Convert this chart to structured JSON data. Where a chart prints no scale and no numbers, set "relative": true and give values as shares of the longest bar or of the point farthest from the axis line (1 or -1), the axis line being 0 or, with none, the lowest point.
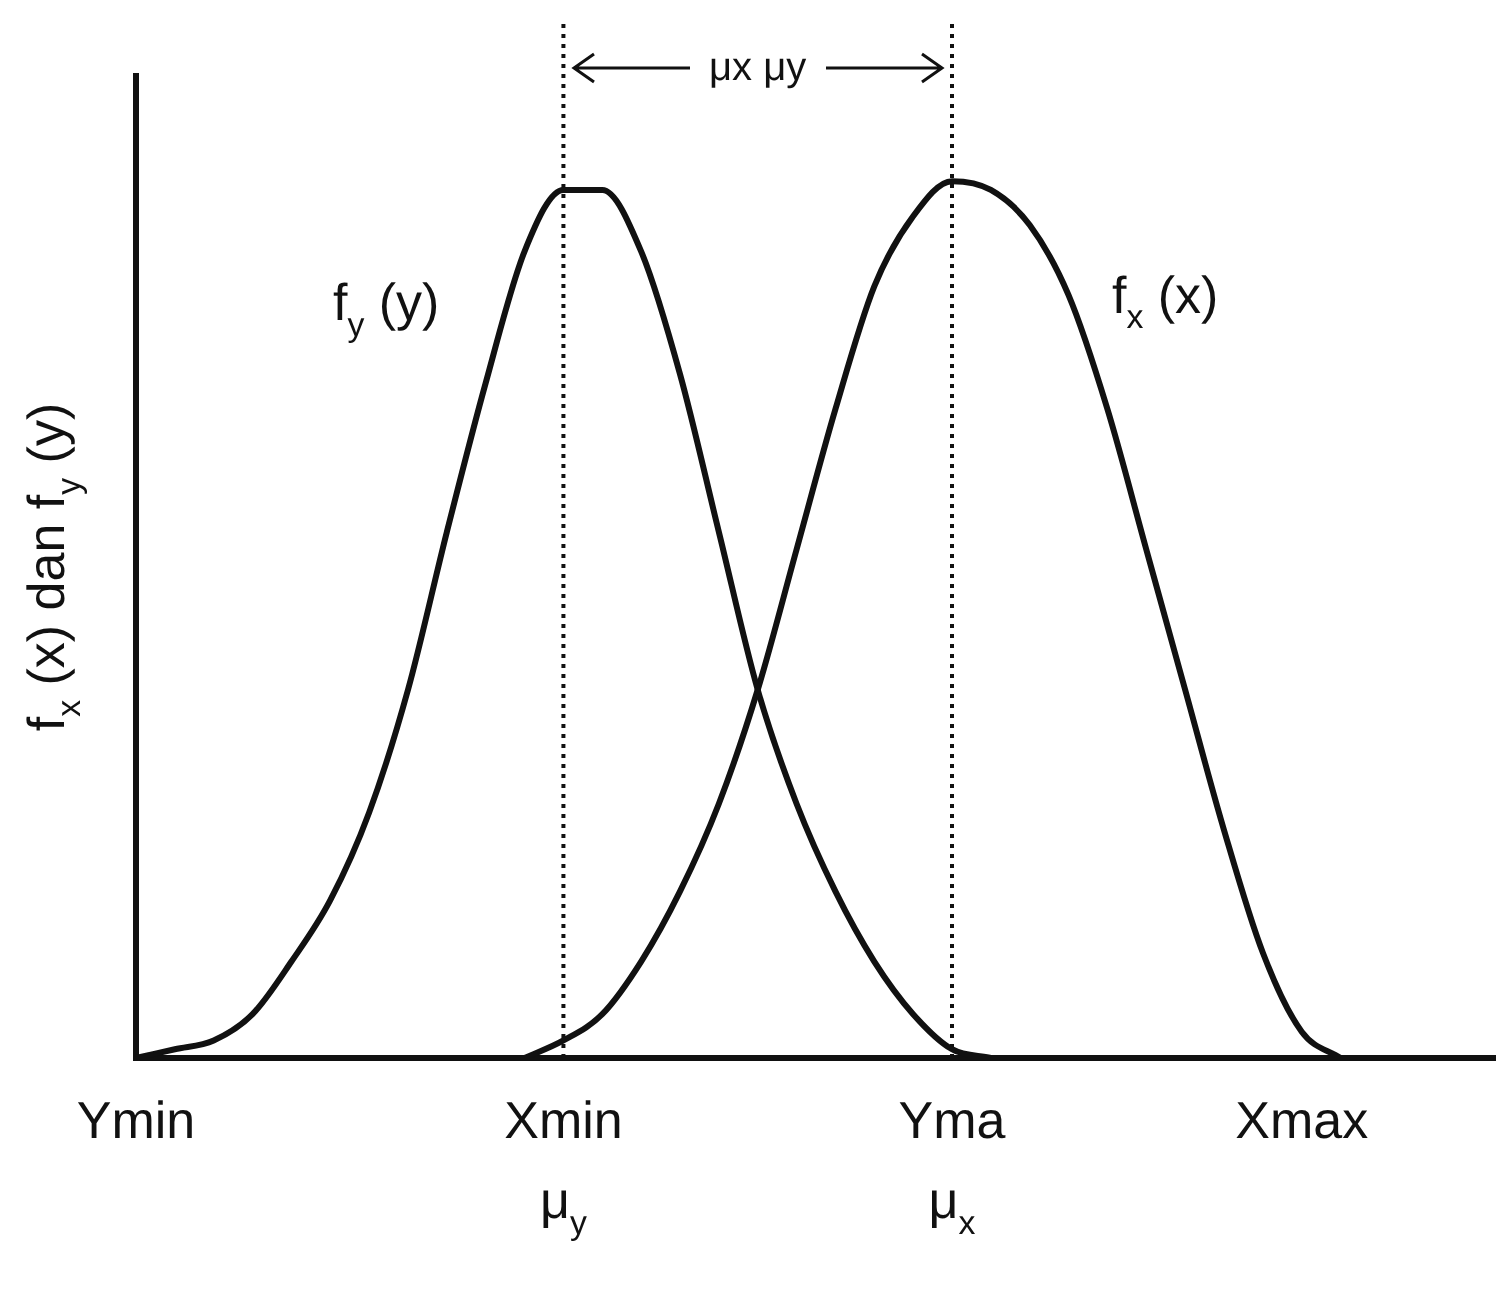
{
  "chart_data": {
    "type": "line",
    "relative": true,
    "ylabel": "f$_{x}$ (x) dan f$_{y}$ (y)",
    "categories": [
      "Ymin",
      null,
      null,
      null,
      null,
      null,
      null,
      null,
      null,
      null,
      null,
      "Xmin\nμ$_{y}$",
      null,
      null,
      null,
      null,
      null,
      null,
      null,
      null,
      null,
      "Yma\nμ$_{x}$",
      null,
      null,
      null,
      null,
      null,
      null,
      null,
      null,
      "Xmax",
      null,
      null,
      null,
      null,
      null
    ],
    "series": [
      {
        "name": "f$_{y}$ (y)",
        "color": "#111111",
        "values": [
          0,
          0.01,
          0.02,
          0.05,
          0.11,
          0.18,
          0.28,
          0.42,
          0.6,
          0.77,
          0.92,
          0.99,
          0.99,
          0.92,
          0.78,
          0.6,
          0.42,
          0.29,
          0.19,
          0.11,
          0.05,
          0.01,
          0,
          null,
          null,
          null,
          null,
          null,
          null,
          null,
          null,
          null,
          null,
          null,
          null,
          null
        ]
      },
      {
        "name": "f$_{x}$ (x)",
        "color": "#111111",
        "values": [
          null,
          null,
          null,
          null,
          null,
          null,
          null,
          null,
          null,
          null,
          0,
          0.02,
          0.05,
          0.11,
          0.19,
          0.29,
          0.42,
          0.58,
          0.74,
          0.88,
          0.96,
          1.0,
          0.99,
          0.95,
          0.87,
          0.74,
          0.58,
          0.42,
          0.26,
          0.12,
          0.03,
          0,
          null,
          null,
          null,
          null
        ]
      }
    ],
    "ref_lines": [
      {
        "axis": "x",
        "value": "Xmin\nμ$_{y}$",
        "color": "#111111",
        "line_style": "dotted"
      },
      {
        "axis": "x",
        "value": "Yma\nμ$_{x}$",
        "color": "#111111",
        "line_style": "dotted"
      }
    ],
    "annotations": [
      "μx μy"
    ],
    "marker": "none",
    "line_style": "solid"
  }
}
